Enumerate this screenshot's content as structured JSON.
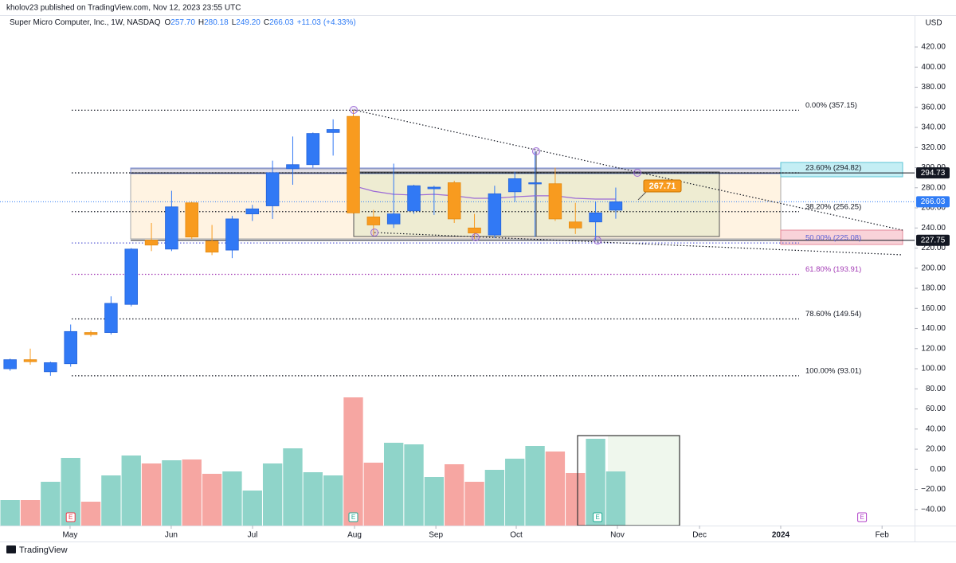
{
  "header": {
    "publisher": "kholov23 published on TradingView.com, Nov 12, 2023 23:55 UTC",
    "brand": "TradingView"
  },
  "chart_data": {
    "type": "candlestick",
    "title": "Super Micro Computer, Inc., 1W, NASDAQ",
    "ohlc": {
      "keys": [
        "O",
        "H",
        "L",
        "C"
      ],
      "values": [
        257.7,
        280.18,
        249.2,
        266.03
      ],
      "value_labels": [
        "257.70",
        "280.18",
        "249.20",
        "266.03"
      ]
    },
    "change": {
      "value": 11.03,
      "label": "+11.03",
      "percent": 4.33,
      "percent_label": "(+4.33%)"
    },
    "currency": "USD",
    "x": [
      0,
      1,
      2,
      3,
      4,
      5,
      6,
      7,
      8,
      9,
      10,
      11,
      12,
      13,
      14,
      15,
      16,
      17,
      18,
      19,
      20,
      21,
      22,
      23,
      24,
      25,
      26,
      27,
      28,
      29,
      30
    ],
    "open": [
      100,
      109,
      97,
      105,
      136,
      136,
      164,
      228,
      219,
      265,
      227,
      218,
      254,
      262,
      299,
      303,
      335,
      351,
      251,
      244,
      257,
      279,
      285,
      240,
      233,
      276,
      284,
      284,
      246,
      246,
      257.7
    ],
    "high": [
      110,
      120,
      107,
      144,
      138,
      172,
      220,
      245,
      277,
      266,
      243,
      252,
      263,
      307,
      331,
      335,
      348,
      357.15,
      258,
      304,
      283,
      282,
      287,
      254,
      282,
      296,
      316,
      300,
      265,
      266,
      280.18
    ],
    "low": [
      98,
      104,
      93,
      102,
      132,
      134,
      162,
      217,
      217,
      229,
      213,
      210,
      247,
      249,
      283,
      300,
      312,
      254,
      232,
      240,
      254,
      253,
      245,
      229,
      230,
      266,
      231,
      247,
      234,
      227.8,
      249.2
    ],
    "close": [
      109,
      107,
      106,
      137,
      134,
      165,
      219,
      223,
      261,
      231,
      216,
      249,
      259,
      295,
      303,
      334,
      338,
      255,
      243,
      254,
      282,
      280.6,
      249,
      235,
      274,
      289,
      285,
      249,
      240,
      255,
      266.03
    ],
    "up_color": "#3179f5",
    "down_color": "#f89b1f",
    "ma": {
      "color": "#9c6ad6",
      "values": [
        null,
        null,
        null,
        null,
        null,
        null,
        null,
        null,
        null,
        null,
        null,
        null,
        null,
        null,
        null,
        null,
        null,
        282,
        276.6,
        273.5,
        272.7,
        273.5,
        272,
        269.5,
        269.5,
        271,
        272,
        272,
        269.5,
        268.7,
        268.7
      ]
    },
    "volume": {
      "values": [
        32,
        32,
        55,
        85,
        30,
        63,
        88,
        78,
        82,
        83,
        65,
        68,
        44,
        78,
        97,
        67,
        63,
        161,
        79,
        104,
        102,
        61,
        77,
        55,
        70,
        84,
        100,
        93,
        66,
        109,
        68
      ],
      "ylim": [
        0,
        170
      ],
      "up_color": "#8fd4c9",
      "down_color": "#f6a6a2"
    },
    "xlim": [
      -0.5,
      44.8
    ],
    "xticks": [
      {
        "value": 2.97,
        "label": "May"
      },
      {
        "value": 7.98,
        "label": "Jun"
      },
      {
        "value": 12.01,
        "label": "Jul"
      },
      {
        "value": 17.06,
        "label": "Aug"
      },
      {
        "value": 21.09,
        "label": "Sep"
      },
      {
        "value": 25.07,
        "label": "Oct"
      },
      {
        "value": 30.08,
        "label": "Nov"
      },
      {
        "value": 34.15,
        "label": "Dec"
      },
      {
        "value": 38.17,
        "label": "2024"
      },
      {
        "value": 43.19,
        "label": "Feb"
      }
    ],
    "ylim": [
      -56,
      451.7
    ],
    "yticks": [
      {
        "value": -40,
        "label": "−40.00"
      },
      {
        "value": -20,
        "label": "−20.00"
      },
      {
        "value": 0,
        "label": "0.00"
      },
      {
        "value": 20,
        "label": "20.00"
      },
      {
        "value": 40,
        "label": "40.00"
      },
      {
        "value": 60,
        "label": "60.00"
      },
      {
        "value": 80,
        "label": "80.00"
      },
      {
        "value": 100,
        "label": "100.00"
      },
      {
        "value": 120,
        "label": "120.00"
      },
      {
        "value": 140,
        "label": "140.00"
      },
      {
        "value": 160,
        "label": "160.00"
      },
      {
        "value": 180,
        "label": "180.00"
      },
      {
        "value": 200,
        "label": "200.00"
      },
      {
        "value": 220,
        "label": "220.00"
      },
      {
        "value": 240,
        "label": "240.00"
      },
      {
        "value": 260,
        "label": "260.00"
      },
      {
        "value": 280,
        "label": "280.00"
      },
      {
        "value": 300,
        "label": "300.00"
      },
      {
        "value": 320,
        "label": "320.00"
      },
      {
        "value": 340,
        "label": "340.00"
      },
      {
        "value": 360,
        "label": "360.00"
      },
      {
        "value": 380,
        "label": "380.00"
      },
      {
        "value": 400,
        "label": "400.00"
      },
      {
        "value": 420,
        "label": "420.00"
      }
    ],
    "grid": false,
    "fib_levels": [
      {
        "value": 357.15,
        "label": "0.00% (357.15)",
        "color": "#131722"
      },
      {
        "value": 294.82,
        "label": "23.60% (294.82)",
        "color": "#131722"
      },
      {
        "value": 256.25,
        "label": "38.20% (256.25)",
        "color": "#131722"
      },
      {
        "value": 225.08,
        "label": "50.00% (225.08)",
        "color": "#5b5fd6"
      },
      {
        "value": 193.91,
        "label": "61.80% (193.91)",
        "color": "#a33bb5"
      },
      {
        "value": 149.54,
        "label": "78.60% (149.54)",
        "color": "#131722"
      },
      {
        "value": 93.01,
        "label": "100.00% (93.01)",
        "color": "#131722"
      }
    ],
    "price_markers": [
      {
        "value": 294.73,
        "color": "#131722",
        "style": "solid"
      },
      {
        "value": 266.03,
        "color": "#2f7cf6",
        "style": "dotted"
      },
      {
        "value": 227.75,
        "color": "#131722",
        "style": "solid"
      }
    ],
    "callout": {
      "value": 267.71,
      "color": "#f89b1f"
    },
    "events": [
      {
        "label": "E",
        "x": 3,
        "color": "#f23645"
      },
      {
        "label": "E",
        "x": 17,
        "color": "#22ab94"
      },
      {
        "label": "E",
        "x": 29.1,
        "color": "#22ab94"
      },
      {
        "label": "E",
        "x": 42.2,
        "color": "#b040c8"
      }
    ]
  }
}
